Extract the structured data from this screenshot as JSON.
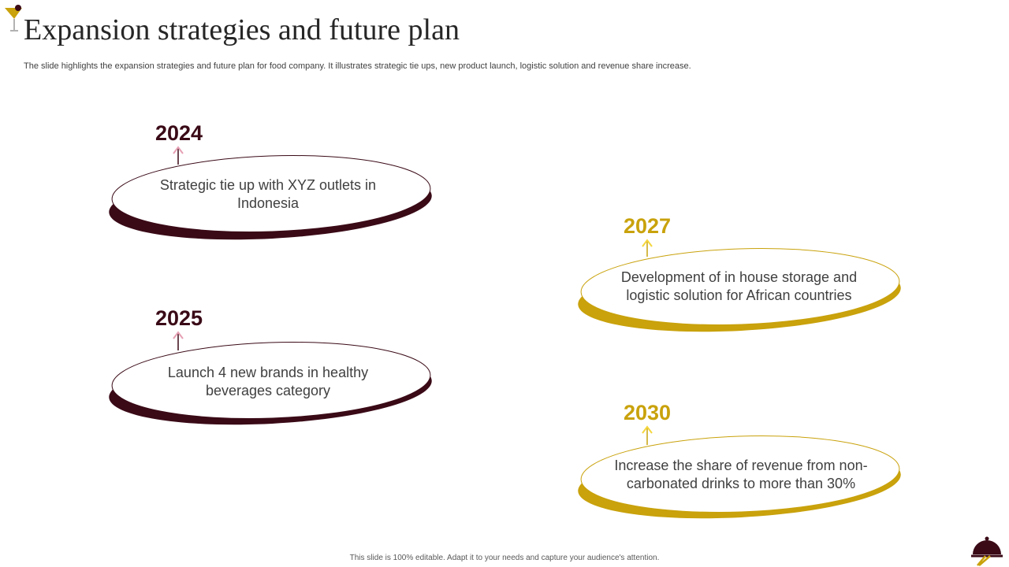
{
  "slide": {
    "title": "Expansion strategies and future plan",
    "subtitle": "The slide highlights the expansion strategies and future plan for food company. It illustrates strategic tie ups, new product launch, logistic solution and revenue share increase.",
    "footer": "This slide is 100% editable.  Adapt it to your needs and capture your audience's attention."
  },
  "colors": {
    "maroon": "#3a0a17",
    "gold": "#c9a20c",
    "pink_arrow": "#e6a0b4",
    "yellow_arrow": "#f5d63d"
  },
  "icons": {
    "top_left": "cocktail-glass-icon",
    "bottom_right": "serving-cloche-icon"
  },
  "milestones": [
    {
      "year": "2024",
      "text": "Strategic tie up with XYZ outlets in Indonesia"
    },
    {
      "year": "2025",
      "text": "Launch 4 new brands in healthy beverages category"
    },
    {
      "year": "2027",
      "text": "Development of in house storage and logistic solution for African countries"
    },
    {
      "year": "2030",
      "text": "Increase the share of revenue from non-carbonated drinks to more than 30%"
    }
  ]
}
